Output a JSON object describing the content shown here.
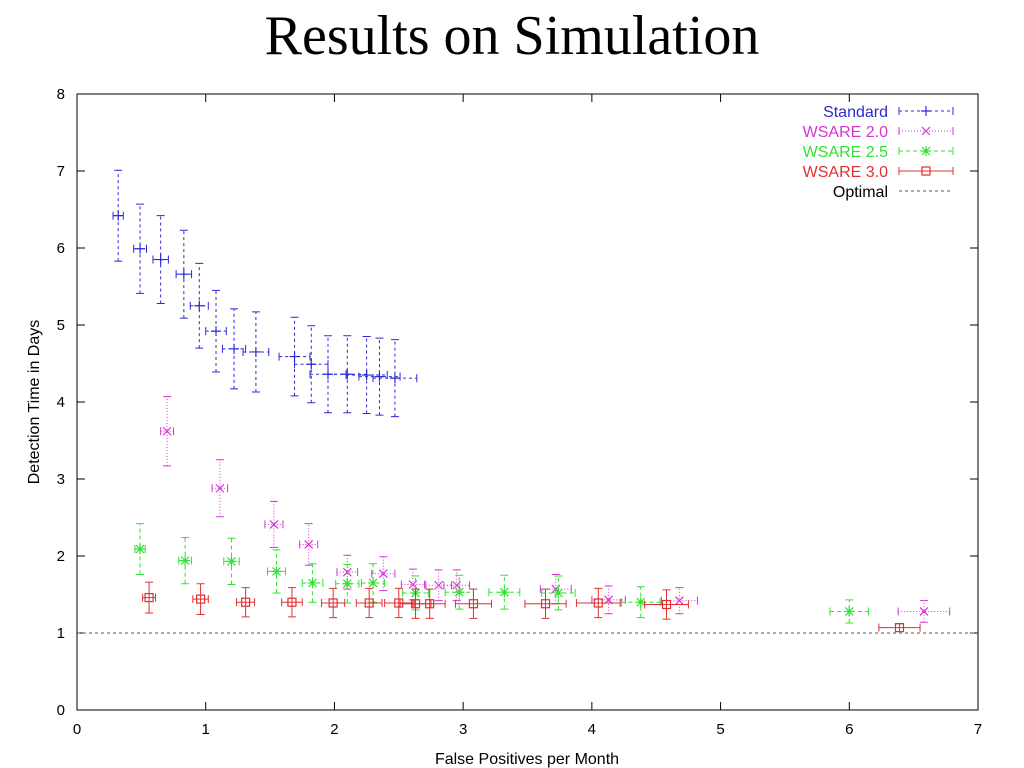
{
  "chart_data": {
    "type": "scatter",
    "title": "Results on Simulation",
    "xlabel": "False Positives per Month",
    "ylabel": "Detection Time in Days",
    "xlim": [
      0,
      7
    ],
    "ylim": [
      0,
      8
    ],
    "xticks": [
      "0",
      "1",
      "2",
      "3",
      "4",
      "5",
      "6",
      "7"
    ],
    "yticks": [
      "0",
      "1",
      "2",
      "3",
      "4",
      "5",
      "6",
      "7",
      "8"
    ],
    "grid": false,
    "legend_position": "top-right",
    "reference_line": {
      "name": "Optimal",
      "y": 1,
      "color": "#555555"
    },
    "series": [
      {
        "name": "Standard",
        "color": "#2b2bd6",
        "marker": "plus",
        "points": [
          {
            "x": 0.32,
            "y": 6.42,
            "xerr": 0.04,
            "yerr": 0.59
          },
          {
            "x": 0.49,
            "y": 5.99,
            "xerr": 0.05,
            "yerr": 0.58
          },
          {
            "x": 0.65,
            "y": 5.85,
            "xerr": 0.06,
            "yerr": 0.57
          },
          {
            "x": 0.83,
            "y": 5.66,
            "xerr": 0.06,
            "yerr": 0.57
          },
          {
            "x": 0.95,
            "y": 5.25,
            "xerr": 0.07,
            "yerr": 0.55
          },
          {
            "x": 1.08,
            "y": 4.92,
            "xerr": 0.08,
            "yerr": 0.53
          },
          {
            "x": 1.22,
            "y": 4.69,
            "xerr": 0.09,
            "yerr": 0.52
          },
          {
            "x": 1.39,
            "y": 4.65,
            "xerr": 0.1,
            "yerr": 0.52
          },
          {
            "x": 1.69,
            "y": 4.59,
            "xerr": 0.12,
            "yerr": 0.51
          },
          {
            "x": 1.82,
            "y": 4.49,
            "xerr": 0.13,
            "yerr": 0.5
          },
          {
            "x": 1.95,
            "y": 4.36,
            "xerr": 0.14,
            "yerr": 0.5
          },
          {
            "x": 2.1,
            "y": 4.36,
            "xerr": 0.15,
            "yerr": 0.5
          },
          {
            "x": 2.25,
            "y": 4.35,
            "xerr": 0.16,
            "yerr": 0.5
          },
          {
            "x": 2.35,
            "y": 4.33,
            "xerr": 0.16,
            "yerr": 0.5
          },
          {
            "x": 2.47,
            "y": 4.31,
            "xerr": 0.17,
            "yerr": 0.5
          }
        ]
      },
      {
        "name": "WSARE 2.0",
        "color": "#d633d6",
        "marker": "x",
        "points": [
          {
            "x": 0.7,
            "y": 3.62,
            "xerr": 0.05,
            "yerr": 0.45
          },
          {
            "x": 1.11,
            "y": 2.88,
            "xerr": 0.06,
            "yerr": 0.37
          },
          {
            "x": 1.53,
            "y": 2.41,
            "xerr": 0.07,
            "yerr": 0.3
          },
          {
            "x": 1.8,
            "y": 2.15,
            "xerr": 0.07,
            "yerr": 0.27
          },
          {
            "x": 2.1,
            "y": 1.79,
            "xerr": 0.08,
            "yerr": 0.22
          },
          {
            "x": 2.38,
            "y": 1.77,
            "xerr": 0.09,
            "yerr": 0.22
          },
          {
            "x": 2.61,
            "y": 1.63,
            "xerr": 0.09,
            "yerr": 0.2
          },
          {
            "x": 2.81,
            "y": 1.62,
            "xerr": 0.1,
            "yerr": 0.2
          },
          {
            "x": 2.95,
            "y": 1.62,
            "xerr": 0.1,
            "yerr": 0.2
          },
          {
            "x": 3.72,
            "y": 1.57,
            "xerr": 0.12,
            "yerr": 0.19
          },
          {
            "x": 4.13,
            "y": 1.43,
            "xerr": 0.13,
            "yerr": 0.18
          },
          {
            "x": 4.68,
            "y": 1.42,
            "xerr": 0.14,
            "yerr": 0.17
          },
          {
            "x": 6.58,
            "y": 1.28,
            "xerr": 0.2,
            "yerr": 0.14
          }
        ]
      },
      {
        "name": "WSARE 2.5",
        "color": "#33e033",
        "marker": "star",
        "points": [
          {
            "x": 0.49,
            "y": 2.09,
            "xerr": 0.04,
            "yerr": 0.33
          },
          {
            "x": 0.84,
            "y": 1.94,
            "xerr": 0.05,
            "yerr": 0.3
          },
          {
            "x": 1.2,
            "y": 1.93,
            "xerr": 0.06,
            "yerr": 0.3
          },
          {
            "x": 1.55,
            "y": 1.8,
            "xerr": 0.07,
            "yerr": 0.28
          },
          {
            "x": 1.83,
            "y": 1.65,
            "xerr": 0.08,
            "yerr": 0.25
          },
          {
            "x": 2.1,
            "y": 1.64,
            "xerr": 0.09,
            "yerr": 0.25
          },
          {
            "x": 2.3,
            "y": 1.65,
            "xerr": 0.09,
            "yerr": 0.25
          },
          {
            "x": 2.63,
            "y": 1.52,
            "xerr": 0.1,
            "yerr": 0.22
          },
          {
            "x": 2.97,
            "y": 1.53,
            "xerr": 0.11,
            "yerr": 0.22
          },
          {
            "x": 3.32,
            "y": 1.53,
            "xerr": 0.12,
            "yerr": 0.22
          },
          {
            "x": 3.74,
            "y": 1.52,
            "xerr": 0.13,
            "yerr": 0.22
          },
          {
            "x": 4.38,
            "y": 1.4,
            "xerr": 0.15,
            "yerr": 0.2
          },
          {
            "x": 6.0,
            "y": 1.28,
            "xerr": 0.15,
            "yerr": 0.15
          }
        ]
      },
      {
        "name": "WSARE 3.0",
        "color": "#e03030",
        "marker": "square",
        "points": [
          {
            "x": 0.56,
            "y": 1.46,
            "xerr": 0.05,
            "yerr": 0.2
          },
          {
            "x": 0.96,
            "y": 1.44,
            "xerr": 0.06,
            "yerr": 0.2
          },
          {
            "x": 1.31,
            "y": 1.4,
            "xerr": 0.07,
            "yerr": 0.19
          },
          {
            "x": 1.67,
            "y": 1.4,
            "xerr": 0.08,
            "yerr": 0.19
          },
          {
            "x": 1.99,
            "y": 1.39,
            "xerr": 0.09,
            "yerr": 0.19
          },
          {
            "x": 2.27,
            "y": 1.39,
            "xerr": 0.1,
            "yerr": 0.19
          },
          {
            "x": 2.5,
            "y": 1.39,
            "xerr": 0.11,
            "yerr": 0.19
          },
          {
            "x": 2.63,
            "y": 1.38,
            "xerr": 0.12,
            "yerr": 0.19
          },
          {
            "x": 2.74,
            "y": 1.38,
            "xerr": 0.12,
            "yerr": 0.19
          },
          {
            "x": 3.08,
            "y": 1.38,
            "xerr": 0.14,
            "yerr": 0.19
          },
          {
            "x": 3.64,
            "y": 1.38,
            "xerr": 0.16,
            "yerr": 0.19
          },
          {
            "x": 4.05,
            "y": 1.39,
            "xerr": 0.17,
            "yerr": 0.19
          },
          {
            "x": 4.58,
            "y": 1.37,
            "xerr": 0.17,
            "yerr": 0.19
          },
          {
            "x": 6.39,
            "y": 1.07,
            "xerr": 0.16,
            "yerr": 0.05
          }
        ]
      }
    ]
  }
}
